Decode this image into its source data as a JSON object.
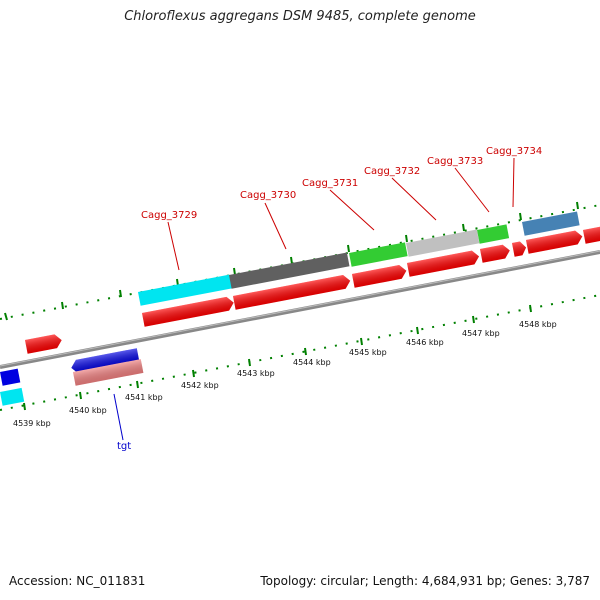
{
  "title": "Chloroflexus aggregans DSM 9485, complete genome",
  "footer": {
    "accession": "Accession: NC_011831",
    "summary": "Topology: circular; Length: 4,684,931 bp; Genes: 3,787"
  },
  "scale_labels": [
    "4539 kbp",
    "4540 kbp",
    "4541 kbp",
    "4542 kbp",
    "4543 kbp",
    "4544 kbp",
    "4545 kbp",
    "4546 kbp",
    "4547 kbp",
    "4548 kbp"
  ],
  "gene_labels": [
    "Cagg_3729",
    "Cagg_3730",
    "Cagg_3731",
    "Cagg_3732",
    "Cagg_3733",
    "Cagg_3734"
  ],
  "trna_label": "tgt",
  "colors": {
    "cds": "#ff0000",
    "cds_light": "#f08080",
    "cog_cyan": "#00e5f0",
    "cog_darkgray": "#606060",
    "cog_green": "#33cc33",
    "cog_lightgray": "#c0c0c0",
    "cog_blue": "#0000e0",
    "cog_steelblue": "#4682b4",
    "backbone": "#888888",
    "ticks": "#008000",
    "gene_label": "#cc0000",
    "trna_label": "#0000cc"
  }
}
